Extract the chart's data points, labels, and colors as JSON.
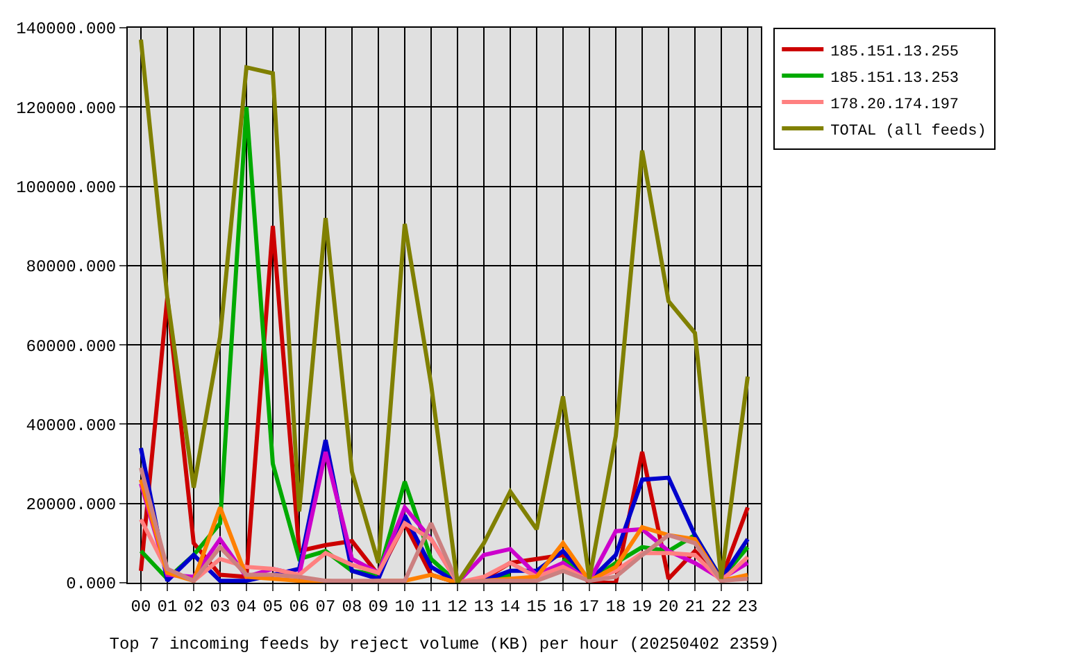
{
  "chart_data": {
    "type": "line",
    "xlabel": "Top 7 incoming feeds by reject volume (KB) per hour (20250402 2359)",
    "categories": [
      "00",
      "01",
      "02",
      "03",
      "04",
      "05",
      "06",
      "07",
      "08",
      "09",
      "10",
      "11",
      "12",
      "13",
      "14",
      "15",
      "16",
      "17",
      "18",
      "19",
      "20",
      "21",
      "22",
      "23"
    ],
    "series": [
      {
        "name": "185.151.13.255",
        "color": "#cc0000",
        "values": [
          3000,
          72000,
          10000,
          2000,
          1500,
          90000,
          8000,
          9500,
          10500,
          2000,
          15000,
          2000,
          0,
          1000,
          5000,
          6000,
          7000,
          0,
          0,
          33000,
          1000,
          8000,
          1000,
          19000
        ]
      },
      {
        "name": "185.151.13.253",
        "color": "#00aa00",
        "values": [
          8000,
          1000,
          7000,
          15000,
          120000,
          30000,
          6000,
          8000,
          3000,
          2000,
          25500,
          6000,
          0,
          500,
          2000,
          null,
          6000,
          500,
          5000,
          9000,
          8000,
          12000,
          1000,
          9000
        ]
      },
      {
        "color": "#0000cc",
        "values": [
          34000,
          500,
          7000,
          500,
          500,
          2000,
          3500,
          36000,
          3000,
          1000,
          17000,
          4000,
          0,
          500,
          3000,
          3000,
          8000,
          500,
          7000,
          26000,
          26500,
          12000,
          1000,
          11000
        ]
      },
      {
        "color": "#cc00cc",
        "values": [
          25000,
          2000,
          1500,
          11000,
          1500,
          3500,
          2000,
          33000,
          6000,
          2500,
          19000,
          11000,
          0,
          7000,
          8500,
          2000,
          5000,
          500,
          13000,
          13500,
          8000,
          5000,
          1000,
          5000
        ]
      },
      {
        "name": "178.20.174.197",
        "color": "#ff8080",
        "values": [
          16000,
          3000,
          500,
          6000,
          4000,
          3500,
          2000,
          7500,
          4500,
          2500,
          15000,
          11000,
          0,
          1500,
          5000,
          1500,
          4000,
          500,
          3000,
          7500,
          7500,
          7000,
          500,
          6500
        ]
      },
      {
        "color": "#ff8000",
        "values": [
          26000,
          2500,
          500,
          19000,
          1500,
          1000,
          500,
          500,
          0,
          500,
          500,
          2000,
          0,
          500,
          1000,
          1500,
          10000,
          500,
          4000,
          14000,
          12000,
          11000,
          500,
          2000
        ]
      },
      {
        "color": "#cc8080",
        "values": [
          29000,
          3500,
          500,
          9000,
          2000,
          2000,
          1500,
          500,
          500,
          500,
          500,
          15000,
          0,
          500,
          500,
          500,
          3000,
          500,
          1500,
          7000,
          12000,
          10000,
          500,
          1000
        ]
      },
      {
        "name": "TOTAL (all feeds)",
        "color": "#808000",
        "values": [
          137000,
          72000,
          24000,
          62000,
          130000,
          128500,
          18000,
          92000,
          28000,
          5000,
          90500,
          50000,
          0,
          10000,
          23000,
          13500,
          47000,
          1000,
          37000,
          109000,
          71000,
          63000,
          1000,
          52000
        ]
      }
    ],
    "ylim": [
      0,
      140000
    ],
    "yticks": [
      {
        "value": 0,
        "label": "0.000"
      },
      {
        "value": 20000,
        "label": "20000.000"
      },
      {
        "value": 40000,
        "label": "40000.000"
      },
      {
        "value": 60000,
        "label": "60000.000"
      },
      {
        "value": 80000,
        "label": "80000.000"
      },
      {
        "value": 100000,
        "label": "100000.000"
      },
      {
        "value": 120000,
        "label": "120000.000"
      },
      {
        "value": 140000,
        "label": "140000.000"
      }
    ],
    "grid": true,
    "legend": "top right",
    "marker": "none",
    "line_style": "solid"
  }
}
